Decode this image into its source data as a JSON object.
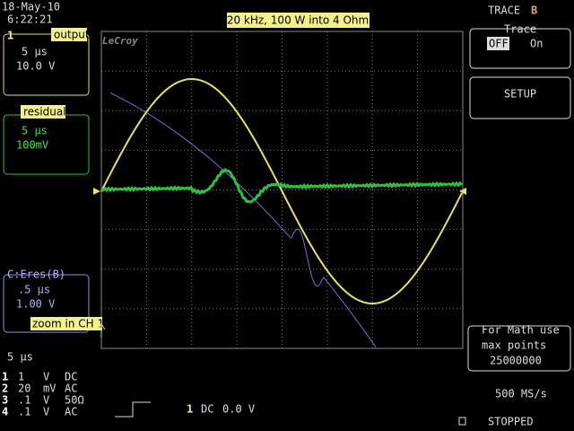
{
  "header": {
    "date": "18-May-10",
    "time": "6:22:21",
    "brand": "LeCroy",
    "banner": "20 kHz, 100 W into 4 Ohm"
  },
  "right_panel": {
    "trace_label": "TRACE",
    "trace_id": "B",
    "trace_title": "Trace",
    "off": "OFF",
    "on": "On",
    "setup": "SETUP",
    "math_note_1": "For Math use",
    "math_note_2": "max points",
    "math_points": "25000000",
    "sample_rate": "500 MS/s",
    "status": "STOPPED"
  },
  "channels": [
    {
      "id": "1",
      "tag": "output",
      "timebase": "5 µs",
      "scale": "10.0 V"
    },
    {
      "id": "",
      "tag": "residual",
      "timebase": "5 µs",
      "scale": "100mV"
    },
    {
      "id": "C:Eres(B)",
      "tag": "zoom in CH 1",
      "timebase": ".5 µs",
      "scale": "1.00 V"
    }
  ],
  "timebase": "5 µs",
  "inputs": [
    [
      "1",
      "1",
      "V",
      "DC"
    ],
    [
      "2",
      "20",
      "mV",
      "AC"
    ],
    [
      "3",
      ".1",
      "V",
      "50Ω"
    ],
    [
      "4",
      ".1",
      "V",
      "AC"
    ]
  ],
  "trigger": {
    "channel": "1",
    "coupling": "DC",
    "level": "0.0 V"
  }
}
